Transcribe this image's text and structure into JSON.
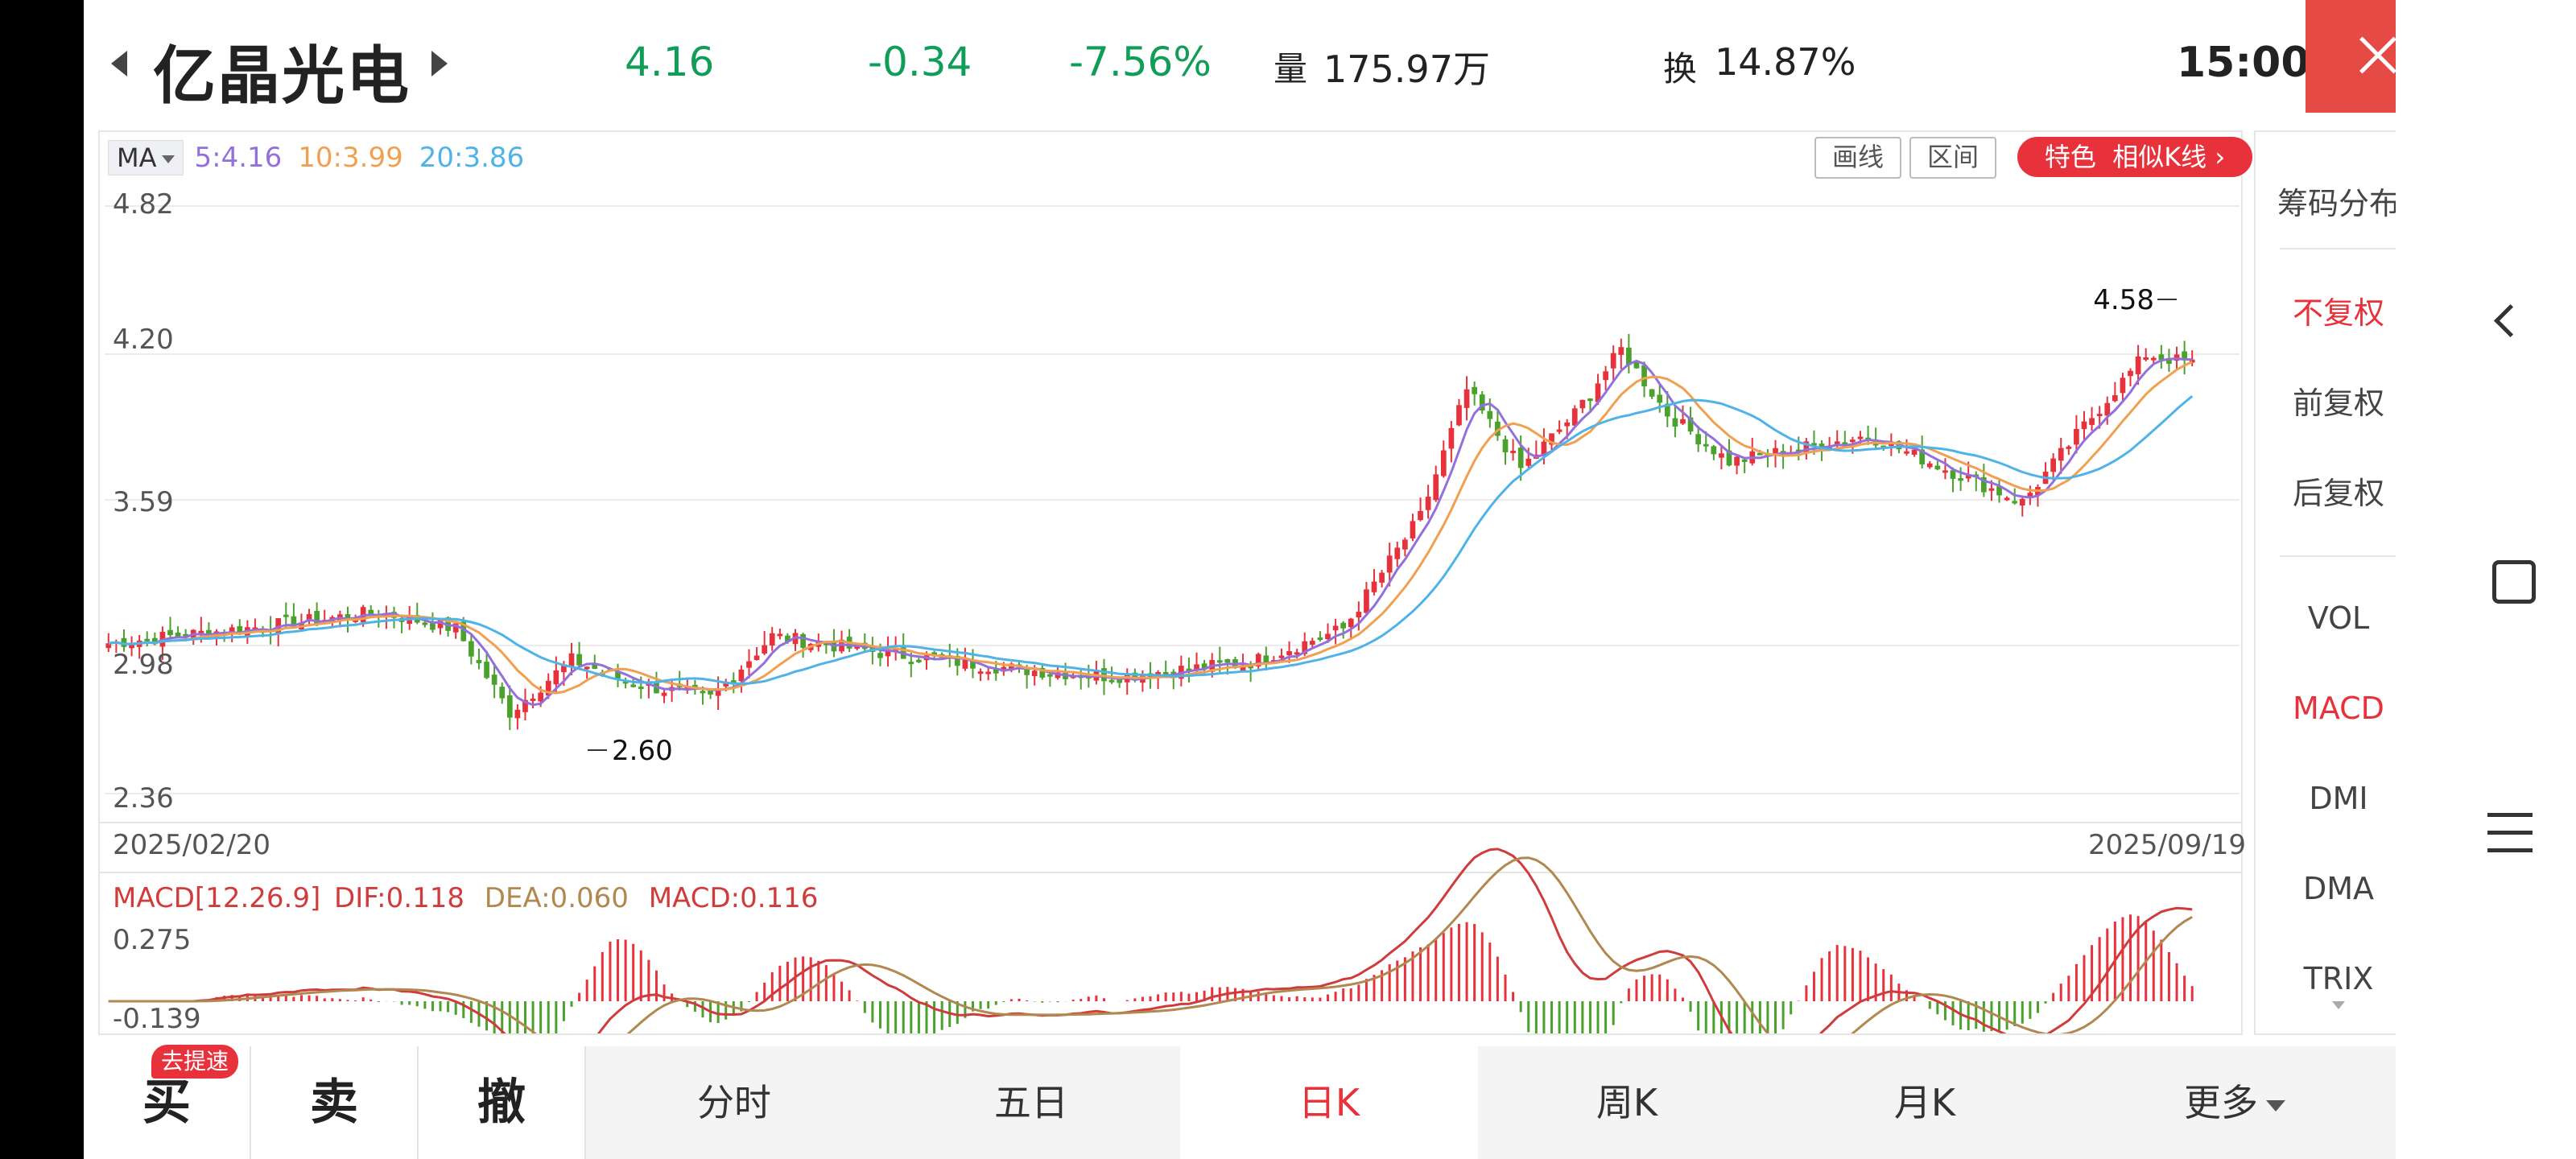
{
  "header": {
    "stock_name": "亿晶光电",
    "price": "4.16",
    "change": "-0.34",
    "change_pct": "-7.56%",
    "volume_label": "量",
    "volume": "175.97万",
    "turnover_label": "换",
    "turnover": "14.87%",
    "time": "15:00"
  },
  "colors": {
    "up": "#e8323b",
    "down": "#4aa12c",
    "ma5": "#9370db",
    "ma10": "#f0a050",
    "ma20": "#4fb3e8",
    "dif": "#d03b3b",
    "dea": "#b08850",
    "green_text": "#0f9d58"
  },
  "ma_legend": {
    "button": "MA",
    "ma5": "5:4.16",
    "ma10": "10:3.99",
    "ma20": "20:3.86"
  },
  "toolbar": {
    "draw_label": "画线",
    "range_label": "区间",
    "feature_label": "特色",
    "similar_label": "相似K线"
  },
  "chart_data": {
    "type": "candlestick",
    "price_axis": {
      "ticks": [
        "4.82",
        "4.20",
        "3.59",
        "2.98",
        "2.36"
      ],
      "min": 2.36,
      "max": 4.82
    },
    "dates": {
      "start": "2025/02/20",
      "end": "2025/09/19"
    },
    "high_label": "4.58",
    "low_label": "2.60",
    "macd": {
      "legend": "MACD[12.26.9]",
      "dif": "DIF:0.118",
      "dea": "DEA:0.060",
      "macd": "MACD:0.116",
      "max_tick": "0.275",
      "min_tick": "-0.139"
    }
  },
  "right_panel": {
    "chips": "筹码分布",
    "adj_none": "不复权",
    "adj_forward": "前复权",
    "adj_backward": "后复权",
    "vol": "VOL",
    "macd": "MACD",
    "dmi": "DMI",
    "dma": "DMA",
    "trix": "TRIX"
  },
  "tabs": {
    "buy": "买",
    "buy_badge": "去提速",
    "sell": "卖",
    "cancel": "撤",
    "intraday": "分时",
    "five_day": "五日",
    "daily_k": "日K",
    "weekly_k": "周K",
    "monthly_k": "月K",
    "more": "更多"
  }
}
